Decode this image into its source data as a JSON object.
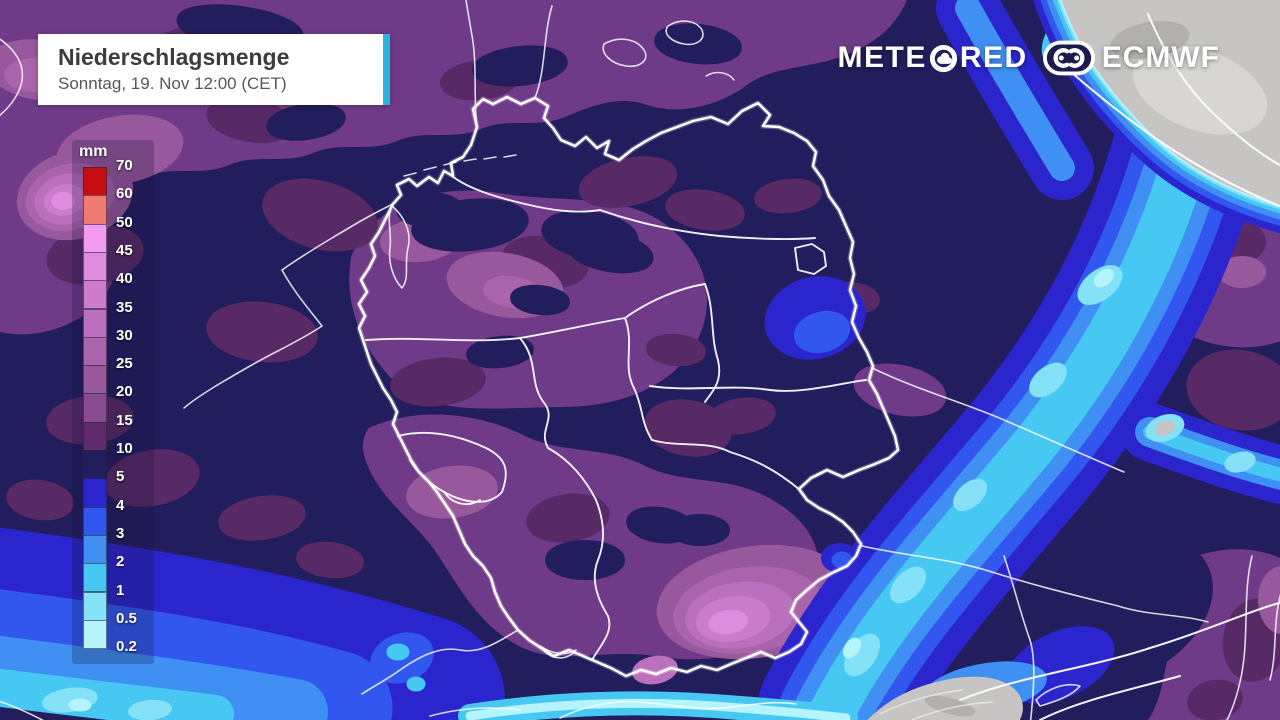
{
  "header": {
    "title": "Niederschlagsmenge",
    "subtitle": "Sonntag, 19. Nov 12:00 (CET)",
    "accent_color": "#2ab2d8"
  },
  "branding": {
    "meteored_prefix": "METE",
    "meteored_suffix": "RED",
    "ecmwf_label": "ECMWF"
  },
  "legend": {
    "unit_label": "mm",
    "ticks": [
      "70",
      "60",
      "50",
      "45",
      "40",
      "35",
      "30",
      "25",
      "20",
      "15",
      "10",
      "5",
      "4",
      "3",
      "2",
      "1",
      "0.5",
      "0.2"
    ],
    "band_colors": [
      "#c60d12",
      "#ef7a72",
      "#f19cf0",
      "#dd8cde",
      "#cb7ccb",
      "#ba70bc",
      "#a964ac",
      "#98589c",
      "#874b8e",
      "#5e2c6b",
      "#221d5c",
      "#2b25cd",
      "#3157ee",
      "#3f90f2",
      "#47c8f3",
      "#85e1f8",
      "#b4f4fc"
    ]
  },
  "map": {
    "palette": {
      "rain_5_10": "#221d5c",
      "rain_10_15": "#572a66",
      "rain_15_20": "#6f3a87",
      "rain_20_25": "#98589c",
      "rain_25_30": "#a964ac",
      "rain_30_35": "#ba70bc",
      "rain_35_40": "#cb7ccb",
      "rain_40_45": "#dd8cde",
      "rain_4_5": "#2b25cd",
      "rain_3_4": "#3157ee",
      "rain_2_3": "#3f90f2",
      "rain_1_2": "#47c8f3",
      "rain_05_1": "#85e1f8",
      "rain_02_05": "#b4f4fc",
      "berlin_core": "#5a54ef",
      "dry_gray": "#c7c5c3",
      "terrain_light": "#d8d6d4",
      "terrain_dark": "#b2b0ae",
      "border_white": "#ffffff"
    }
  }
}
